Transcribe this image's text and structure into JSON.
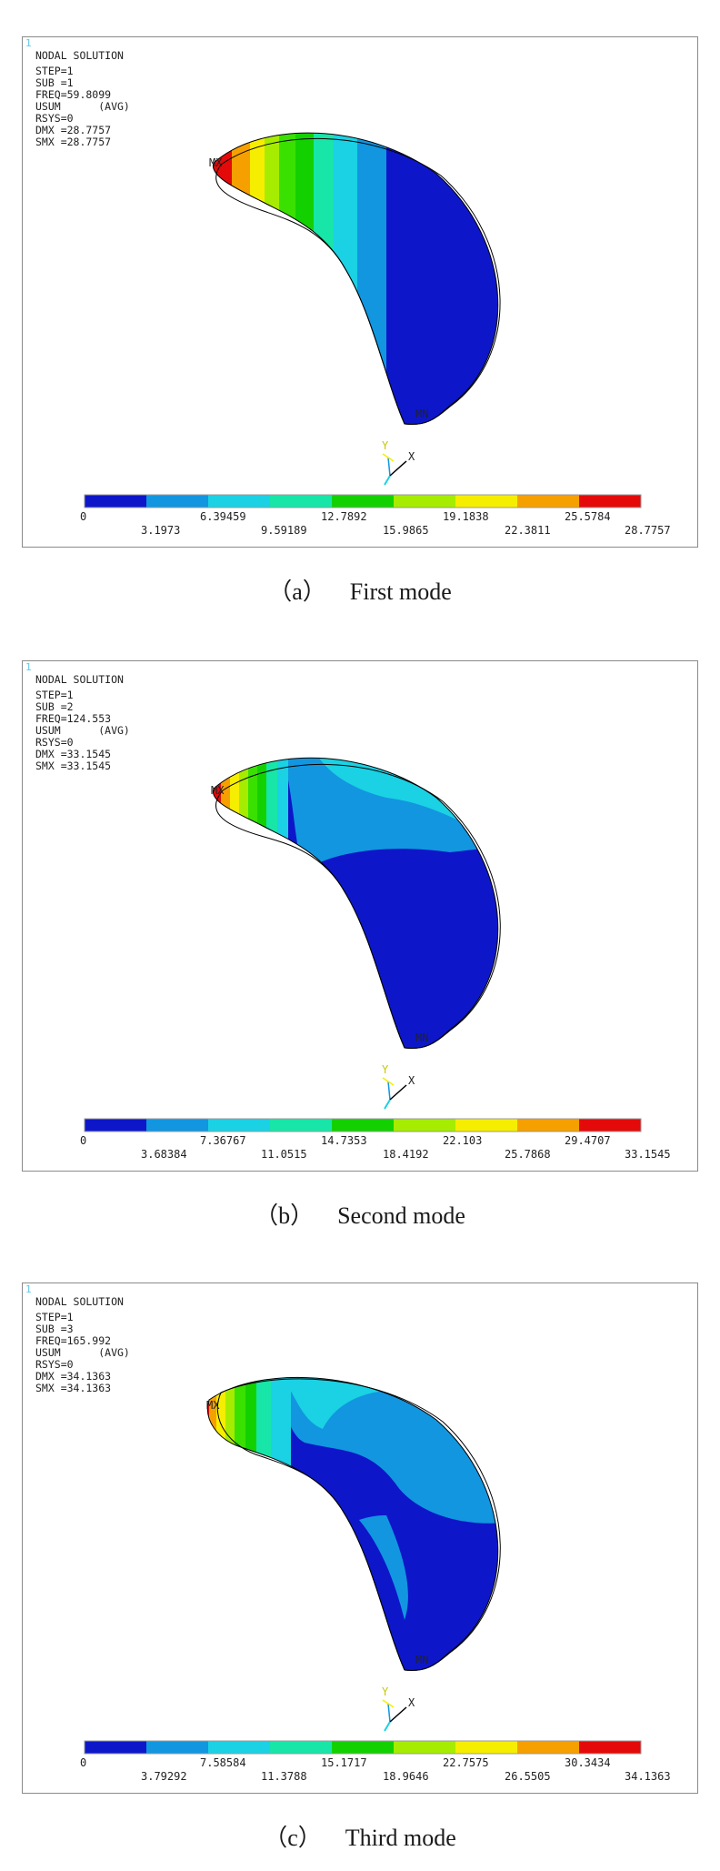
{
  "colorbar_colors": [
    "#0d17c9",
    "#1296e0",
    "#1bd1e4",
    "#17e6a8",
    "#13d100",
    "#a6ec00",
    "#f6ee00",
    "#f6a000",
    "#e40a0a"
  ],
  "panels": [
    {
      "corner": "1",
      "title": "NODAL SOLUTION",
      "step": "STEP=1",
      "sub": "SUB =1",
      "freq": "FREQ=59.8099",
      "usum": "USUM      (AVG)",
      "rsys": "RSYS=0",
      "dmx": "DMX =28.7757",
      "smx": "SMX =28.7757",
      "mx_label": "MX",
      "mn_label": "MN",
      "axis_y": "Y",
      "axis_x": "X",
      "ticks_top": [
        "0",
        "6.39459",
        "12.7892",
        "19.1838",
        "25.5784"
      ],
      "ticks_bottom": [
        "3.1973",
        "9.59189",
        "15.9865",
        "22.3811",
        "28.7757"
      ],
      "caption_label": "（a）",
      "caption_text": "First mode"
    },
    {
      "corner": "1",
      "title": "NODAL SOLUTION",
      "step": "STEP=1",
      "sub": "SUB =2",
      "freq": "FREQ=124.553",
      "usum": "USUM      (AVG)",
      "rsys": "RSYS=0",
      "dmx": "DMX =33.1545",
      "smx": "SMX =33.1545",
      "mx_label": "MX",
      "mn_label": "MN",
      "axis_y": "Y",
      "axis_x": "X",
      "ticks_top": [
        "0",
        "7.36767",
        "14.7353",
        "22.103",
        "29.4707"
      ],
      "ticks_bottom": [
        "3.68384",
        "11.0515",
        "18.4192",
        "25.7868",
        "33.1545"
      ],
      "caption_label": "（b）",
      "caption_text": "Second mode"
    },
    {
      "corner": "1",
      "title": "NODAL SOLUTION",
      "step": "STEP=1",
      "sub": "SUB =3",
      "freq": "FREQ=165.992",
      "usum": "USUM      (AVG)",
      "rsys": "RSYS=0",
      "dmx": "DMX =34.1363",
      "smx": "SMX =34.1363",
      "mx_label": "MX",
      "mn_label": "MN",
      "axis_y": "Y",
      "axis_x": "X",
      "ticks_top": [
        "0",
        "7.58584",
        "15.1717",
        "22.7575",
        "30.3434"
      ],
      "ticks_bottom": [
        "3.79292",
        "11.3788",
        "18.9646",
        "26.5505",
        "34.1363"
      ],
      "caption_label": "（c）",
      "caption_text": "Third mode"
    }
  ]
}
